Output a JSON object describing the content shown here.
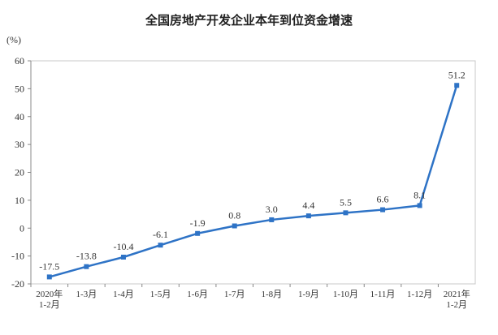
{
  "chart_data": {
    "type": "line",
    "title": "全国房地产开发企业本年到位资金增速",
    "unit_label": "(%)",
    "categories": [
      "2020年 1-2月",
      "1-3月",
      "1-4月",
      "1-5月",
      "1-6月",
      "1-7月",
      "1-8月",
      "1-9月",
      "1-10月",
      "1-11月",
      "1-12月",
      "2021年 1-2月"
    ],
    "category_lines": [
      [
        "2020年",
        "1-2月"
      ],
      [
        "1-3月"
      ],
      [
        "1-4月"
      ],
      [
        "1-5月"
      ],
      [
        "1-6月"
      ],
      [
        "1-7月"
      ],
      [
        "1-8月"
      ],
      [
        "1-9月"
      ],
      [
        "1-10月"
      ],
      [
        "1-11月"
      ],
      [
        "1-12月"
      ],
      [
        "2021年",
        "1-2月"
      ]
    ],
    "series": [
      {
        "values": [
          -17.5,
          -13.8,
          -10.4,
          -6.1,
          -1.9,
          0.8,
          3.0,
          4.4,
          5.5,
          6.6,
          8.1,
          51.2
        ],
        "labels": [
          "-17.5",
          "-13.8",
          "-10.4",
          "-6.1",
          "-1.9",
          "0.8",
          "3.0",
          "4.4",
          "5.5",
          "6.6",
          "8.1",
          "51.2"
        ]
      }
    ],
    "ylim": [
      -20,
      60
    ],
    "yticks": [
      -20,
      -10,
      0,
      10,
      20,
      30,
      40,
      50,
      60
    ],
    "grid": false,
    "line_color": "#2e73c6",
    "marker_color": "#2e73c6"
  }
}
